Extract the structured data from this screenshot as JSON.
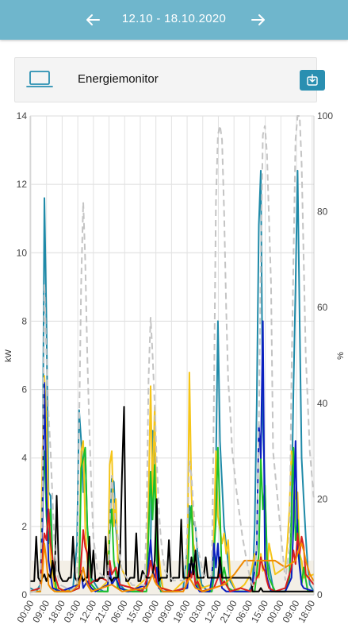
{
  "header": {
    "date_range": "12.10 - 18.10.2020",
    "prev_icon": "arrow-left-icon",
    "next_icon": "arrow-right-icon",
    "background": "#6fb6cc"
  },
  "card": {
    "title": "Energiemonitor",
    "device_icon": "laptop-icon",
    "download_icon": "download-icon",
    "accent": "#2a8fb1"
  },
  "chart_data": {
    "type": "line",
    "ylabel": "kW",
    "y2label": "%",
    "ylim": [
      0,
      14
    ],
    "y2lim": [
      0,
      100
    ],
    "yticks": [
      "0",
      "2",
      "4",
      "6",
      "8",
      "10",
      "12",
      "14"
    ],
    "y2ticks": [
      "0",
      "20",
      "40",
      "60",
      "80",
      "100"
    ],
    "xticks": [
      "00:00",
      "09:00",
      "18:00",
      "03:00",
      "12:00",
      "21:00",
      "06:00",
      "15:00",
      "00:00",
      "09:00",
      "18:00",
      "03:00",
      "12:00",
      "21:00",
      "06:00",
      "15:00",
      "00:00",
      "09:00",
      "18:00"
    ],
    "grid": true,
    "series": [
      {
        "color": "#1f8aa8",
        "x": [
          0,
          3,
          5,
          6,
          7,
          8,
          9,
          10,
          11,
          12,
          13,
          14,
          15,
          18,
          21,
          23,
          24,
          25,
          26,
          27,
          28,
          30,
          33,
          36,
          38,
          39,
          40,
          41,
          42,
          44,
          47,
          51,
          54,
          57,
          59,
          60,
          61,
          62,
          63,
          65,
          68,
          72,
          75,
          77,
          78,
          79,
          80,
          81,
          82,
          84,
          87,
          89,
          90,
          91,
          92,
          93,
          95,
          98,
          101,
          104,
          107,
          109,
          110,
          111,
          112,
          113,
          114,
          116,
          119,
          120,
          122,
          125,
          127,
          128,
          129,
          130,
          131,
          132,
          133,
          134,
          135,
          136,
          137,
          139
        ],
        "y": [
          0.2,
          0.1,
          0.3,
          2.5,
          11.6,
          8,
          3,
          2.9,
          1,
          0.2,
          0.1,
          0.1,
          0.1,
          0.1,
          0.2,
          1.5,
          5.4,
          4.5,
          3,
          4.3,
          2,
          0.5,
          0.2,
          0.1,
          0.1,
          1.8,
          3.4,
          3.3,
          2,
          0.3,
          0.1,
          0.1,
          0.1,
          0.3,
          1.5,
          4.8,
          4.5,
          1.8,
          0.7,
          0.2,
          0.1,
          0.1,
          0.2,
          1.3,
          2.6,
          2.4,
          2.1,
          2,
          1.2,
          0.3,
          0.1,
          0.1,
          0.5,
          3.8,
          8,
          4.5,
          2,
          0.4,
          0.1,
          0.1,
          0.1,
          0.3,
          2,
          5.6,
          10.8,
          12.4,
          5,
          1.2,
          0.2,
          0.1,
          0.1,
          0.1,
          0.5,
          2.5,
          6,
          9,
          12.4,
          8,
          4,
          2.8,
          1.7,
          0.8,
          0.3,
          0.1
        ]
      },
      {
        "color": "#f5c518",
        "x": [
          0,
          5,
          6,
          7,
          8,
          9,
          10,
          12,
          20,
          24,
          25,
          26,
          27,
          28,
          29,
          33,
          38,
          39,
          40,
          41,
          42,
          43,
          50,
          57,
          58,
          59,
          60,
          61,
          62,
          63,
          64,
          65,
          70,
          77,
          78,
          79,
          80,
          81,
          82,
          84,
          89,
          90,
          91,
          92,
          94,
          95,
          96,
          97,
          98,
          101,
          105,
          108,
          110,
          111,
          112,
          113,
          114,
          115,
          116,
          117,
          120,
          125,
          126,
          127,
          128,
          129,
          130,
          131,
          132,
          133,
          134,
          139
        ],
        "y": [
          0.1,
          0.2,
          4,
          6.4,
          5,
          2.5,
          1,
          0.2,
          0.1,
          0.4,
          4.2,
          4.5,
          2,
          1,
          0.2,
          0.1,
          0.4,
          3.8,
          4.2,
          2,
          2.8,
          1,
          0.1,
          0.5,
          2.8,
          6.1,
          2.8,
          5.5,
          1.8,
          1.2,
          0.6,
          0.2,
          0.1,
          0.5,
          6.5,
          3,
          1.5,
          1.2,
          0.6,
          0.2,
          0.3,
          1.8,
          4.2,
          2.3,
          1.5,
          1.8,
          1.2,
          1.6,
          0.5,
          0.1,
          0.3,
          0.6,
          1.2,
          0.7,
          0.5,
          1.2,
          0.7,
          0.9,
          0.6,
          1.5,
          0.6,
          0.8,
          1.5,
          2.5,
          4.2,
          3.6,
          2.8,
          3,
          1.2,
          1,
          0.5,
          0.6
        ]
      },
      {
        "color": "#1abf2a",
        "x": [
          0,
          5,
          6,
          7,
          8,
          9,
          10,
          11,
          13,
          20,
          24,
          25,
          26,
          27,
          28,
          30,
          33,
          38,
          39,
          40,
          41,
          43,
          50,
          57,
          58,
          59,
          60,
          61,
          62,
          64,
          70,
          77,
          78,
          79,
          80,
          81,
          82,
          84,
          89,
          90,
          91,
          92,
          93,
          94,
          95,
          97,
          100,
          110,
          112,
          113,
          114,
          115,
          116,
          117,
          120,
          125,
          127,
          128,
          129,
          130,
          131,
          132,
          133,
          134,
          136,
          139
        ],
        "y": [
          0.1,
          0.1,
          2.8,
          4.2,
          2.3,
          1.5,
          2.5,
          1,
          0.1,
          0.1,
          0.2,
          3.7,
          4,
          4.3,
          2,
          0.3,
          0.1,
          0.1,
          1.8,
          2.5,
          1,
          0.2,
          0.1,
          0.1,
          1.8,
          3.6,
          2.2,
          3.8,
          1,
          0.1,
          0.1,
          0.2,
          2,
          2.6,
          1,
          0.8,
          0.3,
          0.1,
          0.1,
          1.2,
          2.2,
          4.3,
          2.4,
          0.4,
          0.8,
          0.2,
          0.1,
          0.1,
          1.2,
          4,
          2.5,
          3.2,
          1,
          0.5,
          0.1,
          0.1,
          0.5,
          2,
          4.3,
          1.6,
          2.2,
          1,
          0.3,
          0.8,
          0.1,
          0.1
        ]
      },
      {
        "color": "#0a1fbf",
        "x": [
          0,
          5,
          6,
          7,
          8,
          9,
          10,
          11,
          15,
          24,
          25,
          26,
          28,
          30,
          32,
          38,
          39,
          40,
          42,
          44,
          48,
          57,
          58,
          59,
          60,
          61,
          62,
          63,
          65,
          70,
          77,
          78,
          79,
          80,
          81,
          83,
          88,
          89,
          90,
          91,
          92,
          93,
          94,
          96,
          100,
          108,
          110,
          111,
          112,
          113,
          114,
          115,
          116,
          118,
          125,
          128,
          129,
          130,
          131,
          132,
          133,
          134,
          139
        ],
        "y": [
          0.1,
          0.2,
          2,
          6.2,
          3,
          1,
          0.6,
          0.2,
          0.1,
          0.3,
          0.7,
          0.2,
          0.4,
          0.2,
          0.1,
          0.3,
          0.8,
          0.3,
          0.5,
          0.2,
          0.1,
          0.3,
          0.9,
          1.6,
          0.7,
          0.5,
          0.8,
          0.2,
          0.1,
          0.1,
          0.2,
          0.9,
          0.5,
          0.9,
          0.3,
          0.1,
          0.1,
          0.5,
          1.5,
          0.8,
          1.5,
          0.5,
          0.2,
          0.1,
          0.1,
          0.1,
          0.7,
          1.4,
          5,
          4,
          8,
          1,
          0.5,
          0.1,
          0.1,
          0.5,
          2,
          4.5,
          1.5,
          0.8,
          0.3,
          0.2,
          0.1
        ]
      },
      {
        "color": "#d81e1e",
        "x": [
          0,
          5,
          6,
          7,
          8,
          9,
          10,
          12,
          14,
          17,
          20,
          24,
          25,
          26,
          27,
          28,
          29,
          31,
          35,
          38,
          39,
          40,
          42,
          44,
          50,
          55,
          58,
          59,
          60,
          61,
          62,
          64,
          70,
          76,
          78,
          79,
          80,
          81,
          82,
          84,
          90,
          92,
          93,
          94,
          95,
          98,
          103,
          108,
          110,
          112,
          113,
          114,
          115,
          116,
          117,
          120,
          125,
          128,
          129,
          130,
          131,
          132,
          133,
          134,
          135,
          139
        ],
        "y": [
          0.1,
          0.2,
          1.2,
          1.8,
          1.6,
          2.5,
          1.5,
          0.6,
          0.2,
          0.1,
          0.1,
          0.2,
          1,
          1.9,
          1.4,
          1.2,
          0.3,
          0.4,
          0.5,
          0.4,
          1,
          0.6,
          0.8,
          0.3,
          0.2,
          0.1,
          0.6,
          1,
          0.7,
          0.9,
          0.3,
          0.2,
          0.1,
          0.2,
          0.7,
          0.5,
          0.8,
          0.3,
          0.4,
          0.1,
          0.2,
          0.5,
          0.6,
          0.3,
          0.4,
          0.1,
          0.2,
          0.1,
          0.4,
          0.6,
          1.1,
          0.8,
          0.7,
          0.4,
          0.2,
          0.1,
          0.2,
          0.8,
          1.3,
          0.9,
          1.8,
          1.2,
          1.7,
          1.4,
          0.6,
          0.3
        ]
      },
      {
        "color": "#000000",
        "x": [
          0,
          1,
          2,
          3,
          4,
          5,
          6,
          7,
          8,
          9,
          10,
          11,
          12,
          13,
          14,
          15,
          16,
          17,
          18,
          19,
          20,
          21,
          22,
          23,
          24,
          25,
          26,
          27,
          28,
          29,
          30,
          31,
          32,
          33,
          34,
          35,
          36,
          37,
          38,
          39,
          40,
          41,
          42,
          43,
          44,
          45,
          46,
          47,
          48,
          49,
          50,
          51,
          52,
          53,
          54,
          55,
          56,
          57,
          58,
          59,
          60,
          61,
          62,
          63,
          64,
          65,
          66,
          67,
          68,
          69,
          70,
          71,
          72,
          73,
          74,
          75,
          76,
          77,
          78,
          79,
          80,
          81,
          82,
          83,
          84,
          85,
          86,
          87,
          88,
          89,
          90,
          91,
          92,
          93,
          94,
          95,
          96,
          97,
          98,
          99,
          100,
          101,
          102,
          103,
          104,
          105,
          106,
          107,
          108,
          109,
          110,
          111,
          112,
          113,
          114,
          115,
          116,
          117,
          118,
          119,
          120,
          121,
          122,
          123,
          124,
          125,
          126,
          127,
          128,
          129,
          130,
          131,
          132,
          133,
          134,
          135,
          136,
          137,
          138,
          139
        ],
        "y": [
          0.4,
          0.4,
          0.4,
          1.7,
          0.5,
          0.4,
          0.5,
          0.6,
          0.4,
          0.6,
          0.5,
          1,
          0.4,
          2.9,
          0.7,
          0.5,
          0.4,
          0.4,
          0.4,
          0.5,
          0.5,
          1.7,
          0.5,
          0.4,
          0.5,
          0.6,
          0.4,
          0.5,
          0.5,
          1.7,
          0.5,
          1.3,
          0.4,
          0.4,
          0.5,
          0.5,
          0.5,
          1.7,
          0.5,
          0.5,
          0.4,
          0.5,
          0.5,
          0.5,
          1,
          3.5,
          5.5,
          0.4,
          0.4,
          0.5,
          0.5,
          0.5,
          1.8,
          0.4,
          0.4,
          0.7,
          0.6,
          0.5,
          0.5,
          0.5,
          0.6,
          1,
          2.8,
          0.4,
          0.5,
          0.5,
          0.5,
          0.5,
          1.6,
          0.4,
          0.5,
          0.5,
          0.5,
          0.5,
          2.2,
          0.5,
          0.5,
          0.5,
          0.5,
          1.1,
          0.6,
          1.3,
          0.5,
          0.5,
          0.5,
          0.5,
          1.1,
          0.5,
          0.5,
          0.5,
          0.5,
          0.5,
          0.5,
          1.1,
          0.5,
          0.5,
          0.5,
          0.5,
          0.5,
          0.5,
          0.5,
          0.5,
          0.5,
          0.5,
          0.5,
          0.5,
          0.5,
          0.5,
          0.5,
          0.1,
          0.1,
          0.1,
          0.1,
          0.2,
          0.1,
          0.1,
          0.1,
          0.1,
          0.1,
          0.1,
          0.1,
          0.1,
          0.1,
          0.1,
          0.1,
          0.1,
          0.1,
          0.1,
          0.1,
          0.1,
          0.1,
          0.1,
          0.1,
          0.1,
          0.1,
          0.1,
          0.1,
          0.1,
          0.1,
          0.1
        ]
      },
      {
        "color": "#f08a00",
        "x": [
          0,
          5,
          6,
          7,
          8,
          9,
          10,
          12,
          20,
          24,
          26,
          27,
          28,
          30,
          40,
          45,
          57,
          60,
          61,
          62,
          65,
          75,
          78,
          79,
          81,
          85,
          95,
          100,
          105,
          110,
          115,
          120,
          125,
          130,
          131,
          132,
          133,
          134,
          135,
          136,
          137,
          138,
          139
        ],
        "y": [
          0.1,
          0.1,
          0.6,
          1.5,
          1,
          0.3,
          0.2,
          0.1,
          0.1,
          0.3,
          0.8,
          0.5,
          0.3,
          0.1,
          0.3,
          0.1,
          0.2,
          0.6,
          0.4,
          0.3,
          0.1,
          0.1,
          0.5,
          0.4,
          0.2,
          0.1,
          0.3,
          0.6,
          1,
          1,
          1,
          1,
          0.8,
          1,
          1.2,
          1.4,
          1.5,
          1.3,
          1,
          0.8,
          0.6,
          0.5,
          0.4
        ]
      }
    ],
    "percent_series": {
      "color": "#c4c4c4",
      "x": [
        0,
        5,
        6,
        7,
        8,
        9,
        10,
        11,
        12,
        13,
        14,
        15,
        20,
        23,
        24,
        25,
        26,
        27,
        28,
        29,
        30,
        31,
        33,
        38,
        39,
        40,
        41,
        42,
        43,
        44,
        45,
        50,
        56,
        57,
        58,
        59,
        60,
        61,
        62,
        63,
        64,
        65,
        66,
        70,
        76,
        77,
        78,
        79,
        80,
        81,
        82,
        83,
        84,
        85,
        89,
        90,
        91,
        92,
        93,
        94,
        95,
        96,
        97,
        98,
        99,
        100,
        101,
        104,
        107,
        108,
        109,
        110,
        111,
        112,
        113,
        114,
        115,
        116,
        118,
        119,
        125,
        127,
        128,
        129,
        130,
        131,
        132,
        133,
        134,
        135,
        136,
        137,
        138,
        139
      ],
      "y": [
        0.5,
        1,
        20,
        65,
        50,
        38,
        30,
        20,
        10,
        5,
        3,
        2,
        1,
        2,
        35,
        65,
        82,
        70,
        50,
        35,
        22,
        12,
        5,
        3,
        15,
        25,
        20,
        15,
        12,
        8,
        5,
        2,
        2,
        15,
        45,
        58,
        50,
        40,
        28,
        18,
        12,
        8,
        5,
        3,
        3,
        14,
        28,
        25,
        18,
        14,
        10,
        8,
        6,
        4,
        4,
        40,
        82,
        96,
        98,
        95,
        80,
        60,
        45,
        38,
        30,
        26,
        22,
        12,
        5,
        3,
        2,
        2,
        12,
        35,
        70,
        96,
        98,
        92,
        65,
        30,
        3,
        10,
        45,
        70,
        95,
        100,
        100,
        90,
        70,
        50,
        40,
        30,
        25,
        20
      ]
    },
    "fill_series": {
      "color": "#f3efe6",
      "x": [
        0,
        139
      ],
      "y": [
        1,
        1
      ]
    }
  }
}
